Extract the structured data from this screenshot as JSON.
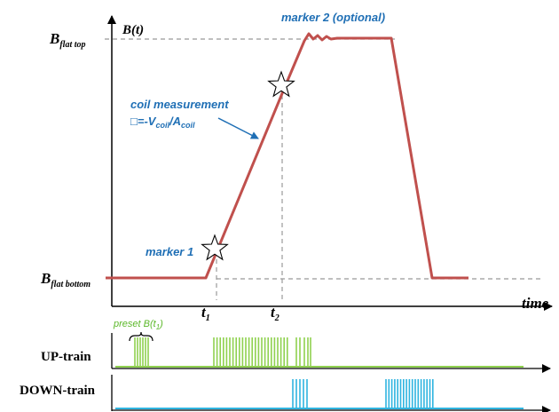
{
  "labels": {
    "y_axis": "B(t)",
    "x_axis": "time",
    "flat_top": {
      "main": "B",
      "sub": "flat top"
    },
    "flat_bottom": {
      "main": "B",
      "sub": "flat bottom"
    },
    "t1": {
      "main": "t",
      "sub": "1"
    },
    "t2": {
      "main": "t",
      "sub": "2"
    },
    "marker1": "marker 1",
    "marker2": "marker 2 (optional)",
    "coil_title": "coil measurement",
    "coil_formula": {
      "prefix": "□=-V",
      "sub1": "coil",
      "mid": "/A",
      "sub2": "coil"
    },
    "preset": {
      "main": "preset B(t",
      "sub": "1",
      "end": ")"
    },
    "up_train": "UP-train",
    "down_train": "DOWN-train"
  },
  "colors": {
    "curve": "#c0504d",
    "annotation": "#1f6fb5",
    "up_train": "#8fd14f",
    "down_train": "#2fb4e0",
    "dashed": "#999999",
    "axis": "#000000"
  }
}
